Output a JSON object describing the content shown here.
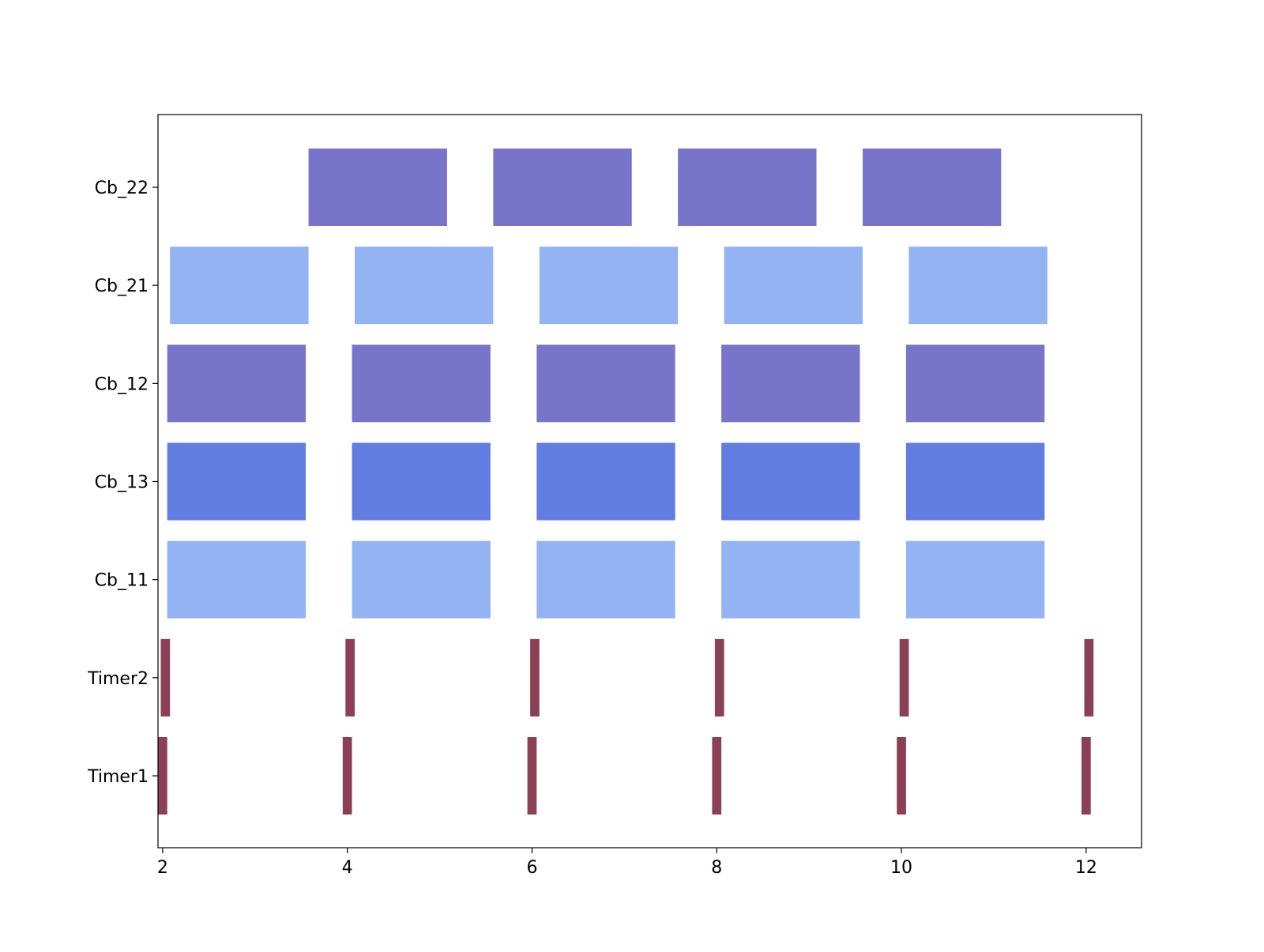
{
  "chart_data": {
    "type": "gantt",
    "title": "",
    "xlabel": "",
    "ylabel": "",
    "xlim": [
      1.95,
      12.6
    ],
    "xticks": [
      2,
      4,
      6,
      8,
      10,
      12
    ],
    "grid": false,
    "legend": "none",
    "rows": [
      {
        "label": "Timer1",
        "color": "#8b4055",
        "segments": [
          [
            1.95,
            2.05
          ],
          [
            3.95,
            4.05
          ],
          [
            5.95,
            6.05
          ],
          [
            7.95,
            8.05
          ],
          [
            9.95,
            10.05
          ],
          [
            11.95,
            12.05
          ]
        ]
      },
      {
        "label": "Timer2",
        "color": "#8b4055",
        "segments": [
          [
            1.98,
            2.08
          ],
          [
            3.98,
            4.08
          ],
          [
            5.98,
            6.08
          ],
          [
            7.98,
            8.08
          ],
          [
            9.98,
            10.08
          ],
          [
            11.98,
            12.08
          ]
        ]
      },
      {
        "label": "Cb_11",
        "color": "#93b3f3",
        "segments": [
          [
            2.05,
            3.55
          ],
          [
            4.05,
            5.55
          ],
          [
            6.05,
            7.55
          ],
          [
            8.05,
            9.55
          ],
          [
            10.05,
            11.55
          ]
        ]
      },
      {
        "label": "Cb_13",
        "color": "#617de2",
        "segments": [
          [
            2.05,
            3.55
          ],
          [
            4.05,
            5.55
          ],
          [
            6.05,
            7.55
          ],
          [
            8.05,
            9.55
          ],
          [
            10.05,
            11.55
          ]
        ]
      },
      {
        "label": "Cb_12",
        "color": "#7874c9",
        "segments": [
          [
            2.05,
            3.55
          ],
          [
            4.05,
            5.55
          ],
          [
            6.05,
            7.55
          ],
          [
            8.05,
            9.55
          ],
          [
            10.05,
            11.55
          ]
        ]
      },
      {
        "label": "Cb_21",
        "color": "#93b3f3",
        "segments": [
          [
            2.08,
            3.58
          ],
          [
            4.08,
            5.58
          ],
          [
            6.08,
            7.58
          ],
          [
            8.08,
            9.58
          ],
          [
            10.08,
            11.58
          ]
        ]
      },
      {
        "label": "Cb_22",
        "color": "#7874c9",
        "segments": [
          [
            3.58,
            5.08
          ],
          [
            5.58,
            7.08
          ],
          [
            7.58,
            9.08
          ],
          [
            9.58,
            11.08
          ]
        ]
      }
    ]
  }
}
